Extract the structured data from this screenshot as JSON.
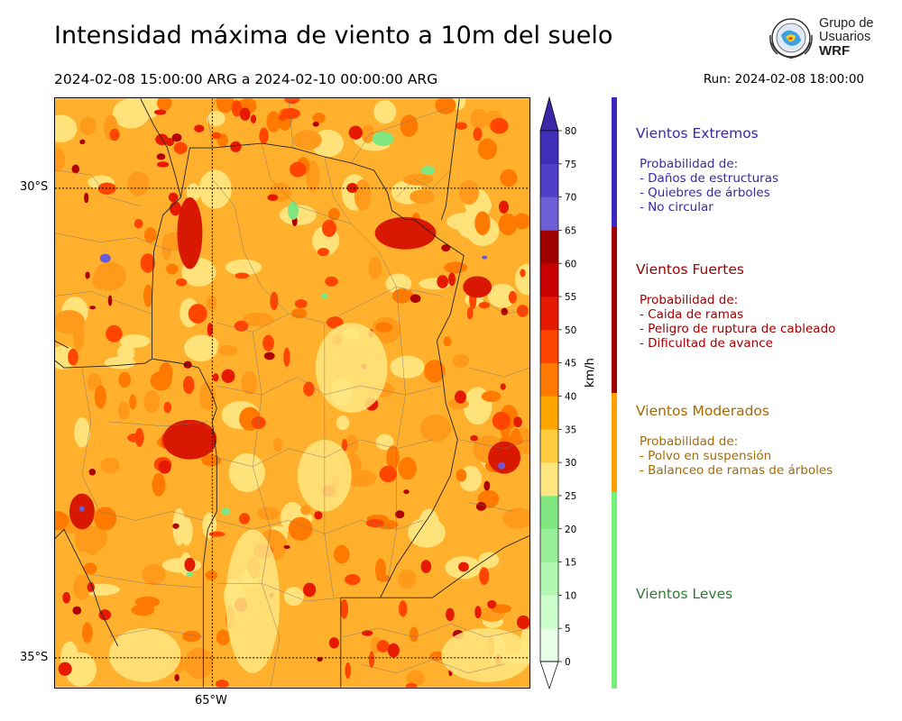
{
  "header": {
    "title": "Intensidad máxima de viento a 10m del suelo",
    "period": "2024-02-08 15:00:00 ARG  a  2024-02-10 00:00:00 ARG",
    "run": "Run: 2024-02-08 18:00:00"
  },
  "logo": {
    "line1": "Grupo de",
    "line2": "Usuarios",
    "line3": "WRF",
    "icon": "globe-emblem-icon"
  },
  "map": {
    "lat_labels": [
      "30°S",
      "35°S"
    ],
    "lon_labels": [
      "65°W"
    ]
  },
  "colorbar": {
    "unit": "km/h",
    "ticks": [
      "0",
      "5",
      "10",
      "15",
      "20",
      "25",
      "30",
      "35",
      "40",
      "45",
      "50",
      "55",
      "60",
      "65",
      "70",
      "75",
      "80"
    ],
    "colors": [
      "#e6ffe6",
      "#ccffcc",
      "#b3f7b3",
      "#99ee99",
      "#80e680",
      "#ffe680",
      "#ffcc40",
      "#ffa500",
      "#ff7a00",
      "#ff4500",
      "#e61a00",
      "#c80000",
      "#a00000",
      "#7060d8",
      "#5040c8",
      "#4030b8"
    ],
    "over_color": "#3a28a8"
  },
  "categories": [
    {
      "title": "Vientos Extremos",
      "color": "#3a28a8",
      "lines": [
        "Probabilidad de:",
        "- Daños de estructuras",
        "- Quiebres de árboles",
        "- No circular"
      ]
    },
    {
      "title": "Vientos Fuertes",
      "color": "#a00000",
      "lines": [
        "Probabilidad de:",
        "- Caida de ramas",
        "- Peligro de ruptura de cableado",
        "- Dificultad de avance"
      ]
    },
    {
      "title": "Vientos Moderados",
      "color": "#a66a00",
      "lines": [
        "Probabilidad de:",
        "- Polvo en suspensión",
        "- Balanceo de ramas de árboles"
      ]
    },
    {
      "title": "Vientos Leves",
      "color": "#2e7d32",
      "lines": []
    }
  ],
  "category_bars": [
    "#3a28c0",
    "#a00000",
    "#ffa000",
    "#76f076"
  ]
}
